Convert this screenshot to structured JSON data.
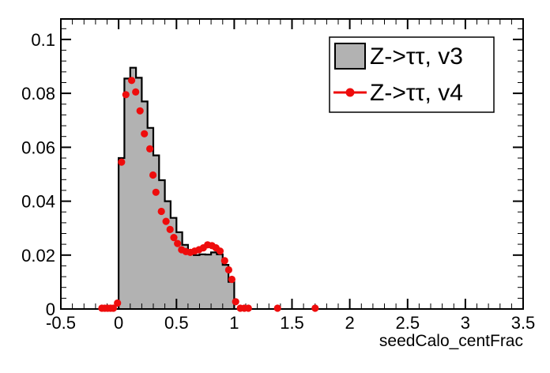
{
  "chart_data": {
    "type": "bar",
    "subtype": "root-histogram-comparison",
    "title": "",
    "xlabel": "seedCalo_centFrac",
    "ylabel": "",
    "xlim": [
      -0.5,
      3.5
    ],
    "ylim": [
      0,
      0.1076
    ],
    "grid": false,
    "x_ticks": {
      "values": [
        -0.5,
        0,
        0.5,
        1,
        1.5,
        2,
        2.5,
        3,
        3.5
      ],
      "labels": [
        "-0.5",
        "0",
        "0.5",
        "1",
        "1.5",
        "2",
        "2.5",
        "3",
        "3.5"
      ],
      "minor_step": 0.1
    },
    "y_ticks": {
      "values": [
        0,
        0.02,
        0.04,
        0.06,
        0.08,
        0.1
      ],
      "labels": [
        "0",
        "0.02",
        "0.04",
        "0.06",
        "0.08",
        "0.1"
      ],
      "minor_step": 0.004
    },
    "series": [
      {
        "name": "Z->ττ, v3",
        "style": "filled-step-histogram",
        "fill_color": "#b2b2b2",
        "line_color": "#000000",
        "bin_start": 0.0,
        "bin_width": 0.05,
        "values": [
          0.056,
          0.0855,
          0.0895,
          0.0858,
          0.077,
          0.0672,
          0.057,
          0.0478,
          0.04,
          0.0338,
          0.0285,
          0.0238,
          0.0207,
          0.02,
          0.0203,
          0.0202,
          0.021,
          0.0203,
          0.0164,
          0.0101
        ]
      },
      {
        "name": "Z->ττ, v4",
        "style": "scatter",
        "marker": "filled-circle",
        "color": "#ee0c0c",
        "points": [
          [
            -0.145,
            0.0003
          ],
          [
            -0.12,
            0.0003
          ],
          [
            -0.095,
            0.0003
          ],
          [
            -0.07,
            0.0003
          ],
          [
            -0.045,
            0.0003
          ],
          [
            -0.01,
            0.0022
          ],
          [
            0.025,
            0.0545
          ],
          [
            0.0625,
            0.0795
          ],
          [
            0.1125,
            0.0848
          ],
          [
            0.1475,
            0.0805
          ],
          [
            0.185,
            0.0735
          ],
          [
            0.2225,
            0.065
          ],
          [
            0.27,
            0.0594
          ],
          [
            0.2975,
            0.0497
          ],
          [
            0.3225,
            0.0433
          ],
          [
            0.37,
            0.0362
          ],
          [
            0.41,
            0.0325
          ],
          [
            0.445,
            0.0295
          ],
          [
            0.4775,
            0.0265
          ],
          [
            0.51,
            0.0243
          ],
          [
            0.545,
            0.022
          ],
          [
            0.5825,
            0.0213
          ],
          [
            0.62,
            0.021
          ],
          [
            0.6575,
            0.0215
          ],
          [
            0.695,
            0.022
          ],
          [
            0.7325,
            0.0227
          ],
          [
            0.77,
            0.0238
          ],
          [
            0.8075,
            0.0235
          ],
          [
            0.8425,
            0.0227
          ],
          [
            0.8775,
            0.0215
          ],
          [
            0.9175,
            0.0179
          ],
          [
            0.9525,
            0.0145
          ],
          [
            0.98,
            0.011
          ],
          [
            1.0125,
            0.0027
          ],
          [
            1.0525,
            0.0003
          ],
          [
            1.0875,
            0.0003
          ],
          [
            1.1225,
            0.0003
          ],
          [
            1.375,
            0.0003
          ],
          [
            1.7,
            0.0003
          ]
        ]
      }
    ],
    "legend": {
      "position": "top-right",
      "entries": [
        {
          "label": "Z->ττ, v3",
          "swatch": "gray-filled-box"
        },
        {
          "label": "Z->ττ, v4",
          "swatch": "red-line-with-dot"
        }
      ]
    },
    "colors": {
      "histogram_fill": "#b2b2b2",
      "histogram_line": "#000000",
      "marker": "#ee0c0c",
      "frame": "#000000",
      "background": "#ffffff"
    }
  }
}
